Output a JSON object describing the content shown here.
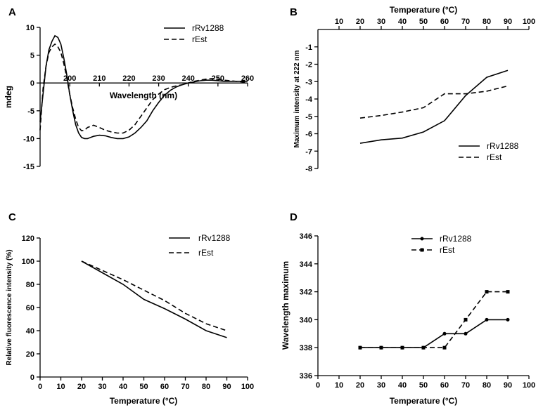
{
  "chart_data": [
    {
      "id": "A",
      "panel_label": "A",
      "type": "line",
      "title": "",
      "xlabel": "Wavelength (nm)",
      "ylabel": "mdeg",
      "xlim": [
        190,
        260
      ],
      "ylim": [
        -15,
        10
      ],
      "xticks": [
        200,
        210,
        220,
        230,
        240,
        250,
        260
      ],
      "yticks": [
        10,
        5,
        0,
        -5,
        -10,
        -15
      ],
      "legend": "top-right",
      "series": [
        {
          "name": "rRv1288",
          "style": "solid",
          "x": [
            190,
            191,
            192,
            193,
            194,
            195,
            196,
            197,
            198,
            199,
            200,
            201,
            202,
            203,
            204,
            205,
            206,
            208,
            210,
            212,
            214,
            216,
            218,
            220,
            222,
            224,
            226,
            228,
            230,
            232,
            234,
            236,
            238,
            240,
            242,
            244,
            246,
            248,
            250,
            252,
            254,
            256,
            258,
            260
          ],
          "y": [
            -7,
            -2,
            3,
            6,
            7.5,
            8.5,
            8.2,
            7,
            4.5,
            1.5,
            -2,
            -5,
            -7.5,
            -9,
            -9.8,
            -10,
            -10,
            -9.6,
            -9.4,
            -9.5,
            -9.8,
            -10,
            -10,
            -9.7,
            -9,
            -8,
            -6.8,
            -5,
            -3.5,
            -2.2,
            -1.3,
            -0.7,
            -0.3,
            0,
            0.2,
            0.4,
            0.5,
            0.5,
            0.4,
            0.3,
            0.3,
            0.3,
            0.3,
            0.3
          ]
        },
        {
          "name": "rEst",
          "style": "dashed",
          "x": [
            190,
            191,
            192,
            193,
            194,
            195,
            196,
            197,
            198,
            199,
            200,
            201,
            202,
            203,
            204,
            205,
            206,
            208,
            210,
            212,
            214,
            216,
            218,
            220,
            222,
            224,
            226,
            228,
            230,
            232,
            234,
            236,
            238,
            240,
            242,
            244,
            246,
            248,
            250,
            252,
            254,
            256,
            258,
            260
          ],
          "y": [
            -8.5,
            -1,
            3,
            5.5,
            6.5,
            7,
            6.5,
            5.5,
            3.5,
            1,
            -2,
            -4.5,
            -6.5,
            -8,
            -8.6,
            -8.5,
            -8,
            -7.6,
            -8,
            -8.5,
            -8.8,
            -9,
            -9,
            -8.5,
            -7.5,
            -6,
            -4.5,
            -3,
            -2,
            -1.2,
            -0.8,
            -0.5,
            -0.3,
            0,
            0.3,
            0.5,
            0.7,
            0.8,
            0.7,
            0.5,
            0.4,
            0.3,
            0.2,
            0.1
          ]
        }
      ]
    },
    {
      "id": "B",
      "panel_label": "B",
      "type": "line",
      "title": "Temperature (°C)",
      "xlabel": "Temperature (°C)",
      "ylabel": "Maximum intensity at 222 nm",
      "xlim": [
        0,
        100
      ],
      "ylim": [
        -8,
        0
      ],
      "xticks": [
        10,
        20,
        30,
        40,
        50,
        60,
        70,
        80,
        90,
        100
      ],
      "yticks": [
        -1,
        -2,
        -3,
        -4,
        -5,
        -6,
        -7,
        -8
      ],
      "legend": "bottom-right",
      "series": [
        {
          "name": "rRv1288",
          "style": "solid",
          "x": [
            20,
            30,
            40,
            50,
            60,
            70,
            80,
            90
          ],
          "y": [
            -6.55,
            -6.35,
            -6.25,
            -5.9,
            -5.25,
            -3.8,
            -2.75,
            -2.35
          ]
        },
        {
          "name": "rEst",
          "style": "dashed",
          "x": [
            20,
            30,
            40,
            50,
            60,
            70,
            80,
            90
          ],
          "y": [
            -5.1,
            -4.95,
            -4.75,
            -4.5,
            -3.7,
            -3.7,
            -3.55,
            -3.25
          ]
        }
      ]
    },
    {
      "id": "C",
      "panel_label": "C",
      "type": "line",
      "title": "",
      "xlabel": "Temperature (°C)",
      "ylabel": "Relative fluorescence intensity (%)",
      "xlim": [
        0,
        100
      ],
      "ylim": [
        0,
        120
      ],
      "xticks": [
        0,
        10,
        20,
        30,
        40,
        50,
        60,
        70,
        80,
        90,
        100
      ],
      "yticks": [
        0,
        20,
        40,
        60,
        80,
        100,
        120
      ],
      "legend": "top-right",
      "series": [
        {
          "name": "rRv1288",
          "style": "solid",
          "x": [
            20,
            30,
            40,
            50,
            60,
            70,
            80,
            90
          ],
          "y": [
            100,
            90,
            80,
            67,
            59,
            50,
            40,
            34
          ]
        },
        {
          "name": "rEst",
          "style": "dashed",
          "x": [
            20,
            30,
            40,
            50,
            60,
            70,
            80,
            90
          ],
          "y": [
            100,
            92,
            84,
            75,
            66,
            55,
            46,
            40
          ]
        }
      ]
    },
    {
      "id": "D",
      "panel_label": "D",
      "type": "line",
      "title": "",
      "xlabel": "Temperature (°C)",
      "ylabel": "Wavelength maximum",
      "xlim": [
        0,
        100
      ],
      "ylim": [
        336,
        346
      ],
      "xticks": [
        0,
        10,
        20,
        30,
        40,
        50,
        60,
        70,
        80,
        90,
        100
      ],
      "yticks": [
        336,
        338,
        340,
        342,
        344,
        346
      ],
      "legend": "top-left",
      "series": [
        {
          "name": "rRv1288",
          "style": "solid",
          "marker": "circle",
          "x": [
            20,
            30,
            40,
            50,
            60,
            70,
            80,
            90
          ],
          "y": [
            338,
            338,
            338,
            338,
            339,
            339,
            340,
            340
          ]
        },
        {
          "name": "rEst",
          "style": "dashed",
          "marker": "square",
          "x": [
            20,
            30,
            40,
            50,
            60,
            70,
            80,
            90
          ],
          "y": [
            338,
            338,
            338,
            338,
            338,
            340,
            342,
            342
          ]
        }
      ]
    }
  ]
}
